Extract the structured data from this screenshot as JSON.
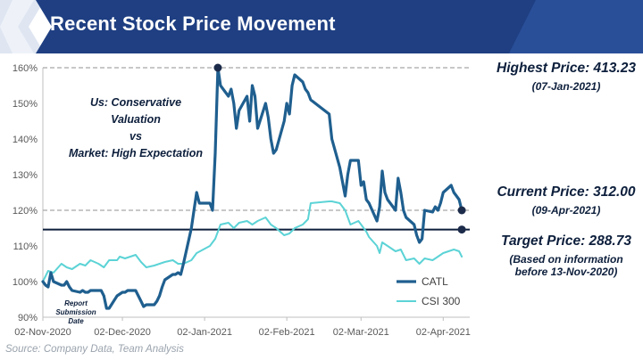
{
  "title": "Recent Stock Price Movement",
  "source": "Source: Company Data, Team Analysis",
  "annotations": {
    "highest_label": "Highest Price: 413.23",
    "highest_date": "(07-Jan-2021)",
    "current_label": "Current Price: 312.00",
    "current_date": "(09-Apr-2021)",
    "target_label": "Target Price: 288.73",
    "target_note_1": "(Based on information",
    "target_note_2": "before 13-Nov-2020)",
    "view_line_1": "Us: Conservative Valuation",
    "view_line_2": "vs",
    "view_line_3": "Market: High Expectation",
    "report_line_1": "Report",
    "report_line_2": "Submission Date"
  },
  "colors": {
    "banner": "#1f3f82",
    "banner_light": "#dfe6f2",
    "catl": "#1f5f8f",
    "csi": "#5cd3d6",
    "target_line": "#0d1f3c",
    "ref_line": "#a6a6a6",
    "marker": "#1c2b4a"
  },
  "chart_data": {
    "type": "line",
    "x_type": "date",
    "x_range": [
      "2020-11-02",
      "2021-04-12"
    ],
    "x_ticks": [
      "2020-11-02",
      "2020-12-02",
      "2021-01-02",
      "2021-02-02",
      "2021-03-02",
      "2021-04-02"
    ],
    "x_tick_labels": [
      "02-Nov-2020",
      "02-Dec-2020",
      "02-Jan-2021",
      "02-Feb-2021",
      "02-Mar-2021",
      "02-Apr-2021"
    ],
    "ylim": [
      0.9,
      1.6
    ],
    "y_ticks": [
      0.9,
      1.0,
      1.1,
      1.2,
      1.3,
      1.4,
      1.5,
      1.6
    ],
    "y_tick_labels": [
      "90%",
      "100%",
      "110%",
      "120%",
      "130%",
      "140%",
      "150%",
      "160%"
    ],
    "xlabel": "",
    "ylabel": "",
    "legend": "bottom-right",
    "grid": false,
    "reference_lines": [
      {
        "y": 1.6,
        "style": "dashed",
        "meaning": "highest"
      },
      {
        "y": 1.2,
        "style": "dashed",
        "meaning": "current"
      },
      {
        "y": 1.146,
        "style": "solid",
        "meaning": "target"
      }
    ],
    "markers": [
      {
        "x": "2021-01-07",
        "y": 1.6
      },
      {
        "x": "2021-04-09",
        "y": 1.2
      },
      {
        "x": "2021-04-09",
        "y": 1.146
      }
    ],
    "series": [
      {
        "name": "CATL",
        "points": [
          [
            "2020-11-02",
            1.0
          ],
          [
            "2020-11-03",
            0.99
          ],
          [
            "2020-11-04",
            0.985
          ],
          [
            "2020-11-05",
            1.025
          ],
          [
            "2020-11-06",
            1.0
          ],
          [
            "2020-11-09",
            0.99
          ],
          [
            "2020-11-10",
            0.99
          ],
          [
            "2020-11-11",
            1.0
          ],
          [
            "2020-11-12",
            0.985
          ],
          [
            "2020-11-13",
            0.975
          ],
          [
            "2020-11-16",
            0.97
          ],
          [
            "2020-11-17",
            0.975
          ],
          [
            "2020-11-18",
            0.97
          ],
          [
            "2020-11-19",
            0.97
          ],
          [
            "2020-11-20",
            0.975
          ],
          [
            "2020-11-23",
            0.975
          ],
          [
            "2020-11-24",
            0.975
          ],
          [
            "2020-11-25",
            0.96
          ],
          [
            "2020-11-26",
            0.925
          ],
          [
            "2020-11-27",
            0.925
          ],
          [
            "2020-11-30",
            0.96
          ],
          [
            "2020-12-01",
            0.965
          ],
          [
            "2020-12-02",
            0.97
          ],
          [
            "2020-12-03",
            0.97
          ],
          [
            "2020-12-04",
            0.975
          ],
          [
            "2020-12-07",
            0.975
          ],
          [
            "2020-12-08",
            0.96
          ],
          [
            "2020-12-09",
            0.945
          ],
          [
            "2020-12-10",
            0.93
          ],
          [
            "2020-12-11",
            0.935
          ],
          [
            "2020-12-14",
            0.935
          ],
          [
            "2020-12-15",
            0.945
          ],
          [
            "2020-12-16",
            0.96
          ],
          [
            "2020-12-17",
            0.985
          ],
          [
            "2020-12-18",
            1.005
          ],
          [
            "2020-12-21",
            1.02
          ],
          [
            "2020-12-22",
            1.02
          ],
          [
            "2020-12-23",
            1.025
          ],
          [
            "2020-12-24",
            1.02
          ],
          [
            "2020-12-25",
            1.05
          ],
          [
            "2020-12-28",
            1.15
          ],
          [
            "2020-12-29",
            1.2
          ],
          [
            "2020-12-30",
            1.25
          ],
          [
            "2020-12-31",
            1.22
          ],
          [
            "2021-01-04",
            1.22
          ],
          [
            "2021-01-05",
            1.2
          ],
          [
            "2021-01-06",
            1.36
          ],
          [
            "2021-01-07",
            1.6
          ],
          [
            "2021-01-08",
            1.55
          ],
          [
            "2021-01-11",
            1.52
          ],
          [
            "2021-01-12",
            1.54
          ],
          [
            "2021-01-13",
            1.5
          ],
          [
            "2021-01-14",
            1.43
          ],
          [
            "2021-01-15",
            1.48
          ],
          [
            "2021-01-18",
            1.52
          ],
          [
            "2021-01-19",
            1.45
          ],
          [
            "2021-01-20",
            1.55
          ],
          [
            "2021-01-21",
            1.52
          ],
          [
            "2021-01-22",
            1.43
          ],
          [
            "2021-01-25",
            1.5
          ],
          [
            "2021-01-26",
            1.46
          ],
          [
            "2021-01-27",
            1.4
          ],
          [
            "2021-01-28",
            1.36
          ],
          [
            "2021-01-29",
            1.37
          ],
          [
            "2021-02-01",
            1.45
          ],
          [
            "2021-02-02",
            1.5
          ],
          [
            "2021-02-03",
            1.47
          ],
          [
            "2021-02-04",
            1.55
          ],
          [
            "2021-02-05",
            1.58
          ],
          [
            "2021-02-08",
            1.56
          ],
          [
            "2021-02-09",
            1.54
          ],
          [
            "2021-02-10",
            1.53
          ],
          [
            "2021-02-11",
            1.51
          ],
          [
            "2021-02-18",
            1.47
          ],
          [
            "2021-02-19",
            1.4
          ],
          [
            "2021-02-22",
            1.32
          ],
          [
            "2021-02-23",
            1.28
          ],
          [
            "2021-02-24",
            1.24
          ],
          [
            "2021-02-25",
            1.3
          ],
          [
            "2021-02-26",
            1.34
          ],
          [
            "2021-03-01",
            1.34
          ],
          [
            "2021-03-02",
            1.27
          ],
          [
            "2021-03-03",
            1.28
          ],
          [
            "2021-03-04",
            1.23
          ],
          [
            "2021-03-05",
            1.22
          ],
          [
            "2021-03-08",
            1.17
          ],
          [
            "2021-03-09",
            1.21
          ],
          [
            "2021-03-10",
            1.31
          ],
          [
            "2021-03-11",
            1.25
          ],
          [
            "2021-03-12",
            1.23
          ],
          [
            "2021-03-15",
            1.2
          ],
          [
            "2021-03-16",
            1.29
          ],
          [
            "2021-03-17",
            1.25
          ],
          [
            "2021-03-18",
            1.2
          ],
          [
            "2021-03-19",
            1.18
          ],
          [
            "2021-03-22",
            1.16
          ],
          [
            "2021-03-23",
            1.13
          ],
          [
            "2021-03-24",
            1.11
          ],
          [
            "2021-03-25",
            1.12
          ],
          [
            "2021-03-26",
            1.2
          ],
          [
            "2021-03-29",
            1.195
          ],
          [
            "2021-03-30",
            1.21
          ],
          [
            "2021-03-31",
            1.2
          ],
          [
            "2021-04-01",
            1.22
          ],
          [
            "2021-04-02",
            1.25
          ],
          [
            "2021-04-05",
            1.27
          ],
          [
            "2021-04-06",
            1.25
          ],
          [
            "2021-04-07",
            1.24
          ],
          [
            "2021-04-08",
            1.23
          ],
          [
            "2021-04-09",
            1.2
          ]
        ]
      },
      {
        "name": "CSI 300",
        "points": [
          [
            "2020-11-02",
            1.0
          ],
          [
            "2020-11-04",
            1.03
          ],
          [
            "2020-11-06",
            1.025
          ],
          [
            "2020-11-09",
            1.05
          ],
          [
            "2020-11-11",
            1.04
          ],
          [
            "2020-11-13",
            1.035
          ],
          [
            "2020-11-16",
            1.05
          ],
          [
            "2020-11-18",
            1.045
          ],
          [
            "2020-11-20",
            1.06
          ],
          [
            "2020-11-23",
            1.05
          ],
          [
            "2020-11-25",
            1.04
          ],
          [
            "2020-11-27",
            1.06
          ],
          [
            "2020-11-30",
            1.06
          ],
          [
            "2020-12-01",
            1.07
          ],
          [
            "2020-12-03",
            1.065
          ],
          [
            "2020-12-07",
            1.075
          ],
          [
            "2020-12-09",
            1.055
          ],
          [
            "2020-12-11",
            1.04
          ],
          [
            "2020-12-14",
            1.045
          ],
          [
            "2020-12-16",
            1.05
          ],
          [
            "2020-12-18",
            1.055
          ],
          [
            "2020-12-21",
            1.06
          ],
          [
            "2020-12-23",
            1.05
          ],
          [
            "2020-12-25",
            1.05
          ],
          [
            "2020-12-28",
            1.06
          ],
          [
            "2020-12-30",
            1.08
          ],
          [
            "2021-01-04",
            1.1
          ],
          [
            "2021-01-06",
            1.12
          ],
          [
            "2021-01-08",
            1.16
          ],
          [
            "2021-01-11",
            1.165
          ],
          [
            "2021-01-13",
            1.15
          ],
          [
            "2021-01-15",
            1.165
          ],
          [
            "2021-01-18",
            1.17
          ],
          [
            "2021-01-20",
            1.16
          ],
          [
            "2021-01-22",
            1.17
          ],
          [
            "2021-01-25",
            1.18
          ],
          [
            "2021-01-27",
            1.16
          ],
          [
            "2021-01-29",
            1.15
          ],
          [
            "2021-02-01",
            1.13
          ],
          [
            "2021-02-03",
            1.135
          ],
          [
            "2021-02-05",
            1.15
          ],
          [
            "2021-02-08",
            1.16
          ],
          [
            "2021-02-10",
            1.175
          ],
          [
            "2021-02-11",
            1.22
          ],
          [
            "2021-02-18",
            1.225
          ],
          [
            "2021-02-19",
            1.225
          ],
          [
            "2021-02-22",
            1.22
          ],
          [
            "2021-02-24",
            1.2
          ],
          [
            "2021-02-26",
            1.16
          ],
          [
            "2021-03-01",
            1.17
          ],
          [
            "2021-03-02",
            1.16
          ],
          [
            "2021-03-04",
            1.14
          ],
          [
            "2021-03-05",
            1.125
          ],
          [
            "2021-03-08",
            1.1
          ],
          [
            "2021-03-09",
            1.08
          ],
          [
            "2021-03-10",
            1.11
          ],
          [
            "2021-03-12",
            1.1
          ],
          [
            "2021-03-15",
            1.085
          ],
          [
            "2021-03-17",
            1.09
          ],
          [
            "2021-03-19",
            1.06
          ],
          [
            "2021-03-22",
            1.065
          ],
          [
            "2021-03-24",
            1.05
          ],
          [
            "2021-03-26",
            1.065
          ],
          [
            "2021-03-29",
            1.06
          ],
          [
            "2021-03-31",
            1.07
          ],
          [
            "2021-04-02",
            1.08
          ],
          [
            "2021-04-06",
            1.09
          ],
          [
            "2021-04-08",
            1.085
          ],
          [
            "2021-04-09",
            1.07
          ]
        ]
      }
    ]
  }
}
